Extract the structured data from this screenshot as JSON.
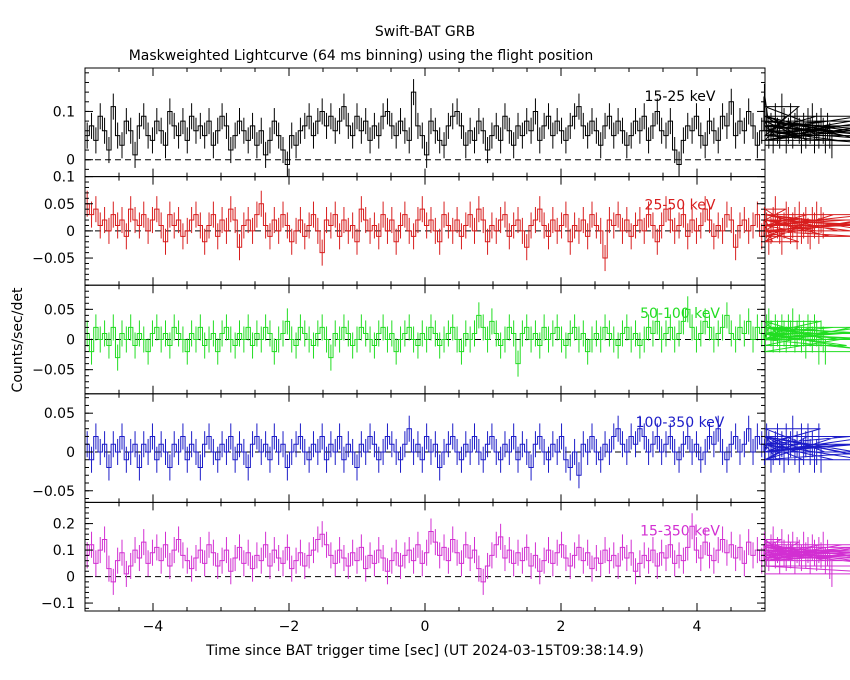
{
  "title": "Swift-BAT GRB",
  "subtitle": "Maskweighted Lightcurve (64 ms binning) using the flight position",
  "xlabel": "Time since BAT trigger time [sec] (UT 2024-03-15T09:38:14.9)",
  "ylabel": "Counts/sec/det",
  "chart_data": {
    "type": "line",
    "title": "Swift-BAT GRB",
    "subtitle": "Maskweighted Lightcurve (64 ms binning) using the flight position",
    "xlabel": "Time since BAT trigger time [sec] (UT 2024-03-15T09:38:14.9)",
    "ylabel": "Counts/sec/det",
    "xlim": [
      -5,
      5
    ],
    "x_ticks": [
      -4,
      -2,
      0,
      2,
      4
    ],
    "bin_width_sec": 0.064,
    "panels": [
      {
        "name": "15-25 keV",
        "color": "#000000",
        "ylim": [
          -0.035,
          0.19
        ],
        "y_ticks": [
          0,
          0.1
        ],
        "y_tick_labels": [
          "0",
          "0.1"
        ],
        "values": [
          0.05,
          0.07,
          0.04,
          0.09,
          0.06,
          0.02,
          0.11,
          0.05,
          0.03,
          0.08,
          0.06,
          0.01,
          0.07,
          0.09,
          0.05,
          0.04,
          0.08,
          0.06,
          0.03,
          0.1,
          0.07,
          0.05,
          0.08,
          0.04,
          0.09,
          0.06,
          0.07,
          0.05,
          0.08,
          0.03,
          0.06,
          0.09,
          0.07,
          0.02,
          0.05,
          0.08,
          0.06,
          0.04,
          0.07,
          0.03,
          0.06,
          0.01,
          0.04,
          0.08,
          0.05,
          0.02,
          -0.01,
          0.05,
          0.03,
          0.06,
          0.07,
          0.09,
          0.05,
          0.08,
          0.1,
          0.07,
          0.09,
          0.06,
          0.08,
          0.11,
          0.07,
          0.05,
          0.09,
          0.06,
          0.08,
          0.04,
          0.07,
          0.05,
          0.09,
          0.1,
          0.07,
          0.05,
          0.08,
          0.06,
          0.04,
          0.14,
          0.07,
          0.05,
          0.01,
          0.08,
          0.06,
          0.04,
          0.03,
          0.07,
          0.09,
          0.1,
          0.07,
          0.03,
          0.06,
          0.04,
          0.08,
          0.06,
          0.02,
          0.05,
          0.07,
          0.04,
          0.09,
          0.06,
          0.03,
          0.07,
          0.05,
          0.08,
          0.06,
          0.1,
          0.04,
          0.07,
          0.09,
          0.05,
          0.08,
          0.06,
          0.04,
          0.07,
          0.09,
          0.11,
          0.07,
          0.05,
          0.08,
          0.06,
          0.03,
          0.07,
          0.09,
          0.05,
          0.08,
          0.06,
          0.03,
          0.05,
          0.08,
          0.06,
          0.09,
          0.04,
          0.07,
          0.1,
          0.06,
          0.05,
          0.08,
          0.02,
          -0.01,
          0.04,
          0.07,
          0.06,
          0.09,
          0.05,
          0.03,
          0.08,
          0.06,
          0.04,
          0.09,
          0.07,
          0.12,
          0.05,
          0.08,
          0.06,
          0.1,
          0.07,
          0.03,
          0.06,
          0.13,
          0.08,
          0.05,
          0.07,
          0.04,
          0.09,
          0.06,
          0.05,
          0.11,
          0.08,
          0.04,
          0.06,
          0.09,
          0.05,
          0.07,
          0.08,
          0.06,
          0.04,
          0.07,
          0.05,
          0.08,
          0.06,
          0.09,
          0.04,
          0.07,
          0.05,
          0.08,
          0.06,
          0.04,
          0.07,
          0.05,
          0.03
        ]
      },
      {
        "name": "25-50 keV",
        "color": "#d81e1e",
        "ylim": [
          -0.1,
          0.1
        ],
        "y_ticks": [
          -0.05,
          0,
          0.05,
          0.1
        ],
        "y_tick_labels": [
          "−0.05",
          "0",
          "0.05",
          "0.1"
        ],
        "values": [
          0.05,
          0.03,
          0.04,
          0.01,
          0.02,
          0.0,
          0.03,
          0.01,
          0.02,
          -0.01,
          0.04,
          0.02,
          0.01,
          0.03,
          0.0,
          0.02,
          0.04,
          0.01,
          -0.02,
          0.03,
          0.01,
          0.02,
          -0.01,
          0.0,
          0.02,
          0.03,
          0.01,
          -0.02,
          0.01,
          0.03,
          -0.01,
          0.02,
          0.0,
          0.04,
          0.02,
          -0.03,
          0.01,
          0.02,
          0.0,
          0.03,
          0.05,
          0.01,
          -0.01,
          0.02,
          0.0,
          0.03,
          0.01,
          -0.02,
          0.0,
          0.02,
          -0.01,
          0.01,
          0.03,
          0.0,
          -0.04,
          0.02,
          0.01,
          0.03,
          -0.01,
          0.02,
          0.0,
          0.01,
          -0.02,
          0.04,
          0.02,
          0.0,
          0.01,
          -0.01,
          0.03,
          0.0,
          0.02,
          -0.02,
          0.01,
          0.03,
          0.0,
          -0.01,
          0.02,
          0.04,
          0.01,
          0.02,
          0.0,
          -0.02,
          0.03,
          0.01,
          0.0,
          0.02,
          -0.01,
          0.01,
          0.03,
          0.0,
          0.04,
          0.02,
          -0.02,
          0.01,
          0.0,
          0.02,
          0.03,
          -0.01,
          0.01,
          0.02,
          0.0,
          -0.03,
          0.01,
          0.02,
          0.04,
          0.01,
          -0.01,
          0.02,
          0.0,
          0.01,
          0.03,
          -0.02,
          0.01,
          0.0,
          0.02,
          -0.01,
          0.03,
          0.01,
          0.0,
          -0.05,
          0.02,
          0.01,
          0.03,
          0.0,
          0.02,
          -0.01,
          0.01,
          0.02,
          0.0,
          0.03,
          0.01,
          -0.02,
          0.01,
          0.04,
          0.02,
          0.0,
          0.01,
          0.03,
          -0.01,
          0.02,
          0.0,
          0.01,
          0.04,
          0.02,
          -0.01,
          0.01,
          0.0,
          0.03,
          0.02,
          -0.03,
          0.01,
          0.02,
          0.0,
          0.01,
          0.03,
          -0.01,
          0.02,
          0.01,
          -0.02,
          0.0,
          0.02,
          0.04,
          0.01,
          0.0,
          -0.02,
          0.01,
          0.03,
          0.02,
          0.0,
          0.01,
          0.02,
          -0.01,
          0.03,
          0.0,
          0.01,
          0.02,
          0.0,
          -0.01,
          0.02,
          0.01,
          0.03,
          0.0,
          0.02,
          0.01
        ]
      },
      {
        "name": "50-100 keV",
        "color": "#22dd22",
        "ylim": [
          -0.09,
          0.09
        ],
        "y_ticks": [
          -0.05,
          0,
          0.05
        ],
        "y_tick_labels": [
          "−0.05",
          "0",
          "0.05"
        ],
        "values": [
          0.01,
          -0.02,
          0.02,
          0.0,
          0.01,
          -0.01,
          0.02,
          -0.03,
          0.01,
          0.0,
          0.02,
          -0.01,
          0.01,
          0.0,
          -0.02,
          0.01,
          0.02,
          0.0,
          0.01,
          -0.01,
          0.02,
          0.01,
          0.0,
          -0.02,
          0.01,
          0.0,
          0.02,
          -0.01,
          0.0,
          0.01,
          -0.02,
          0.01,
          0.02,
          0.0,
          -0.01,
          0.01,
          0.0,
          0.02,
          -0.01,
          0.01,
          0.0,
          0.02,
          0.01,
          -0.02,
          0.0,
          0.01,
          0.03,
          0.0,
          -0.01,
          0.02,
          0.01,
          0.0,
          -0.01,
          0.01,
          0.02,
          0.0,
          -0.03,
          0.01,
          0.0,
          0.02,
          0.01,
          -0.01,
          0.0,
          0.02,
          0.01,
          0.0,
          -0.01,
          0.01,
          0.02,
          0.0,
          0.01,
          -0.02,
          0.0,
          0.01,
          0.02,
          0.0,
          -0.01,
          0.01,
          0.0,
          0.02,
          0.01,
          -0.01,
          0.0,
          0.01,
          0.02,
          0.0,
          -0.02,
          0.01,
          0.0,
          0.01,
          0.04,
          0.02,
          0.0,
          0.03,
          0.01,
          -0.01,
          0.0,
          0.02,
          0.01,
          -0.04,
          0.01,
          0.02,
          0.0,
          0.01,
          -0.01,
          0.02,
          0.0,
          0.01,
          0.02,
          0.0,
          -0.01,
          0.01,
          0.02,
          0.0,
          0.01,
          -0.02,
          0.0,
          0.01,
          0.0,
          0.02,
          0.01,
          0.0,
          -0.01,
          0.01,
          0.02,
          0.0,
          0.01,
          -0.01,
          0.0,
          0.02,
          0.01,
          0.03,
          0.0,
          0.01,
          0.02,
          0.0,
          0.01,
          0.03,
          0.05,
          0.02,
          0.0,
          0.01,
          0.03,
          0.02,
          0.0,
          0.01,
          0.02,
          0.04,
          0.01,
          0.0,
          0.02,
          0.01,
          0.03,
          0.0,
          0.02,
          0.01,
          0.0,
          0.02,
          0.03,
          0.01,
          0.0,
          0.02,
          0.01,
          0.0,
          0.02,
          0.01,
          0.0,
          0.02,
          0.01,
          0.03,
          0.0,
          0.01,
          0.02,
          0.0,
          0.01,
          -0.01,
          0.02,
          0.01,
          0.0,
          0.02,
          0.01,
          -0.02,
          0.01,
          0.0,
          -0.02
        ]
      },
      {
        "name": "100-350 keV",
        "color": "#1c1cc8",
        "ylim": [
          -0.065,
          0.075
        ],
        "y_ticks": [
          -0.05,
          0,
          0.05
        ],
        "y_tick_labels": [
          "−0.05",
          "0",
          "0.05"
        ],
        "values": [
          0.01,
          -0.01,
          0.02,
          0.0,
          0.01,
          -0.02,
          0.01,
          0.0,
          0.02,
          -0.01,
          0.0,
          0.01,
          -0.02,
          0.01,
          0.0,
          0.02,
          -0.01,
          0.01,
          0.0,
          -0.02,
          0.01,
          0.0,
          0.02,
          -0.01,
          0.01,
          0.0,
          -0.02,
          0.01,
          0.02,
          0.0,
          -0.01,
          0.01,
          0.0,
          0.02,
          -0.01,
          0.01,
          0.0,
          -0.02,
          0.01,
          0.02,
          0.0,
          0.01,
          -0.01,
          0.02,
          0.0,
          0.01,
          -0.02,
          0.0,
          0.01,
          0.02,
          0.0,
          -0.01,
          0.01,
          0.0,
          0.02,
          -0.01,
          0.01,
          0.0,
          0.02,
          -0.01,
          0.01,
          0.0,
          -0.02,
          0.01,
          0.0,
          0.02,
          0.01,
          -0.01,
          0.0,
          0.02,
          0.01,
          0.0,
          -0.01,
          0.01,
          0.03,
          0.0,
          0.01,
          -0.01,
          0.02,
          0.0,
          0.01,
          -0.02,
          0.0,
          0.01,
          0.02,
          0.0,
          -0.01,
          0.01,
          0.0,
          0.02,
          0.0,
          -0.01,
          0.01,
          0.02,
          0.0,
          -0.01,
          0.01,
          0.0,
          0.02,
          -0.01,
          0.01,
          0.0,
          -0.02,
          0.01,
          0.02,
          0.0,
          -0.01,
          0.01,
          0.0,
          0.02,
          -0.01,
          -0.02,
          0.0,
          -0.03,
          0.01,
          0.0,
          0.02,
          0.0,
          -0.01,
          0.01,
          0.0,
          0.02,
          0.03,
          0.01,
          0.0,
          0.02,
          0.01,
          0.03,
          0.02,
          0.0,
          0.01,
          0.02,
          0.0,
          0.01,
          0.02,
          0.0,
          -0.01,
          0.01,
          0.02,
          0.0,
          0.01,
          -0.01,
          0.0,
          0.02,
          0.01,
          0.03,
          0.0,
          -0.01,
          0.01,
          0.02,
          0.0,
          0.01,
          0.03,
          0.0,
          0.02,
          0.01,
          0.0,
          0.02,
          0.01,
          -0.01,
          0.0,
          0.01,
          0.02,
          0.0,
          0.01,
          -0.01,
          0.02,
          0.0,
          0.01,
          0.03,
          0.0,
          0.01,
          -0.01,
          0.02,
          0.0,
          0.01,
          0.02,
          0.0,
          0.01,
          -0.01,
          0.0,
          0.02,
          -0.01
        ]
      },
      {
        "name": "15-350 keV",
        "color": "#d22fd2",
        "ylim": [
          -0.13,
          0.28
        ],
        "y_ticks": [
          -0.1,
          0,
          0.1,
          0.2
        ],
        "y_tick_labels": [
          "−0.1",
          "0",
          "0.1",
          "0.2"
        ],
        "values": [
          0.08,
          0.12,
          0.05,
          0.1,
          0.14,
          0.03,
          -0.02,
          0.06,
          0.09,
          0.01,
          0.04,
          0.1,
          0.07,
          0.13,
          0.05,
          0.09,
          0.11,
          0.06,
          0.12,
          0.04,
          0.1,
          0.14,
          0.08,
          0.06,
          0.03,
          0.07,
          0.1,
          0.05,
          0.12,
          0.09,
          0.04,
          0.06,
          0.1,
          0.02,
          0.07,
          0.11,
          0.05,
          0.09,
          0.03,
          0.08,
          0.06,
          0.12,
          0.04,
          0.1,
          0.07,
          0.05,
          0.11,
          0.03,
          0.06,
          0.09,
          0.04,
          0.08,
          0.1,
          0.14,
          0.16,
          0.12,
          0.08,
          0.05,
          0.1,
          0.07,
          0.04,
          0.09,
          0.06,
          0.11,
          0.03,
          0.08,
          0.05,
          0.1,
          0.07,
          0.02,
          0.06,
          0.09,
          0.04,
          0.08,
          0.1,
          0.06,
          0.12,
          0.05,
          0.09,
          0.17,
          0.13,
          0.08,
          0.11,
          0.06,
          0.14,
          0.09,
          0.05,
          0.12,
          0.07,
          0.1,
          0.03,
          -0.02,
          0.04,
          0.08,
          0.12,
          0.15,
          0.07,
          0.1,
          0.05,
          0.09,
          0.06,
          0.11,
          0.04,
          0.08,
          0.02,
          0.06,
          0.1,
          0.05,
          0.09,
          0.12,
          0.07,
          0.04,
          0.08,
          0.11,
          0.06,
          0.09,
          0.03,
          0.07,
          0.05,
          0.1,
          0.06,
          0.08,
          0.04,
          0.11,
          0.07,
          0.09,
          0.02,
          0.05,
          0.08,
          0.06,
          0.1,
          0.04,
          0.09,
          0.07,
          0.12,
          0.05,
          0.08,
          0.06,
          0.11,
          0.19,
          0.1,
          0.07,
          0.13,
          0.08,
          0.06,
          0.1,
          0.14,
          0.09,
          0.12,
          0.07,
          0.11,
          0.05,
          0.13,
          0.08,
          0.1,
          0.06,
          0.12,
          0.09,
          0.07,
          0.11,
          0.14,
          0.08,
          0.1,
          0.06,
          0.13,
          0.09,
          0.07,
          0.11,
          0.08,
          0.12,
          0.06,
          0.1,
          0.09,
          0.07,
          0.12,
          0.08,
          0.1,
          0.06,
          0.11,
          0.09,
          0.07,
          0.1,
          0.08,
          0.12,
          0.06,
          0.09,
          0.04,
          0.01
        ]
      }
    ]
  }
}
